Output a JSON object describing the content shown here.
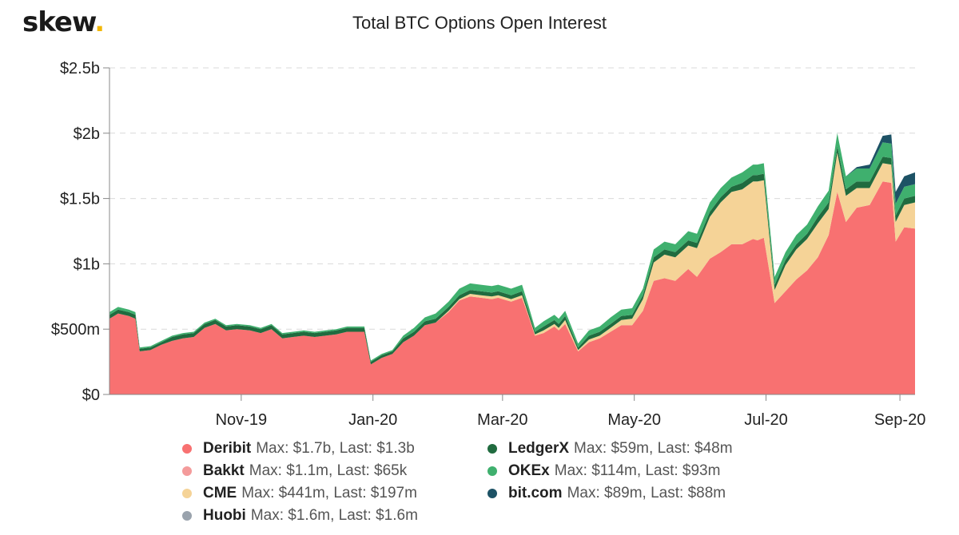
{
  "logo": {
    "text": "skew",
    "dot": "."
  },
  "chart_data": {
    "type": "area",
    "stacked": true,
    "title": "Total BTC Options Open Interest",
    "xlabel": "",
    "ylabel": "",
    "ylim": [
      0,
      2.5
    ],
    "y_unit": "billion USD",
    "yticks": [
      {
        "value": 0,
        "label": "$0"
      },
      {
        "value": 0.5,
        "label": "$500m"
      },
      {
        "value": 1,
        "label": "$1b"
      },
      {
        "value": 1.5,
        "label": "$1.5b"
      },
      {
        "value": 2,
        "label": "$2b"
      },
      {
        "value": 2.5,
        "label": "$2.5b"
      }
    ],
    "xticks": [
      {
        "value": "2019-11-01",
        "label": "Nov-19"
      },
      {
        "value": "2020-01-01",
        "label": "Jan-20"
      },
      {
        "value": "2020-03-01",
        "label": "Mar-20"
      },
      {
        "value": "2020-05-01",
        "label": "May-20"
      },
      {
        "value": "2020-07-01",
        "label": "Jul-20"
      },
      {
        "value": "2020-09-01",
        "label": "Sep-20"
      }
    ],
    "xlim": [
      "2019-09-01",
      "2020-09-08"
    ],
    "grid": "horizontal dashed",
    "x": [
      "2019-09-01",
      "2019-09-05",
      "2019-09-10",
      "2019-09-13",
      "2019-09-15",
      "2019-09-20",
      "2019-09-25",
      "2019-09-30",
      "2019-10-05",
      "2019-10-10",
      "2019-10-15",
      "2019-10-20",
      "2019-10-25",
      "2019-10-30",
      "2019-11-05",
      "2019-11-10",
      "2019-11-15",
      "2019-11-20",
      "2019-11-25",
      "2019-11-30",
      "2019-12-05",
      "2019-12-10",
      "2019-12-15",
      "2019-12-20",
      "2019-12-24",
      "2019-12-28",
      "2019-12-31",
      "2020-01-05",
      "2020-01-10",
      "2020-01-15",
      "2020-01-20",
      "2020-01-25",
      "2020-01-30",
      "2020-02-05",
      "2020-02-10",
      "2020-02-15",
      "2020-02-20",
      "2020-02-25",
      "2020-02-28",
      "2020-03-05",
      "2020-03-10",
      "2020-03-13",
      "2020-03-16",
      "2020-03-20",
      "2020-03-25",
      "2020-03-27",
      "2020-03-30",
      "2020-04-05",
      "2020-04-10",
      "2020-04-15",
      "2020-04-20",
      "2020-04-25",
      "2020-04-30",
      "2020-05-05",
      "2020-05-10",
      "2020-05-15",
      "2020-05-20",
      "2020-05-26",
      "2020-05-30",
      "2020-06-05",
      "2020-06-10",
      "2020-06-15",
      "2020-06-20",
      "2020-06-25",
      "2020-06-27",
      "2020-06-30",
      "2020-07-05",
      "2020-07-10",
      "2020-07-15",
      "2020-07-20",
      "2020-07-25",
      "2020-07-30",
      "2020-08-03",
      "2020-08-07",
      "2020-08-12",
      "2020-08-18",
      "2020-08-24",
      "2020-08-28",
      "2020-08-30",
      "2020-09-03",
      "2020-09-08"
    ],
    "series": [
      {
        "name": "Deribit",
        "color": "#f87171",
        "stats": "Max: $1.7b, Last: $1.3b",
        "values": [
          0.58,
          0.62,
          0.6,
          0.58,
          0.33,
          0.34,
          0.38,
          0.41,
          0.43,
          0.44,
          0.51,
          0.54,
          0.49,
          0.5,
          0.49,
          0.47,
          0.5,
          0.43,
          0.44,
          0.45,
          0.44,
          0.45,
          0.46,
          0.48,
          0.48,
          0.48,
          0.23,
          0.28,
          0.31,
          0.4,
          0.45,
          0.53,
          0.55,
          0.63,
          0.72,
          0.75,
          0.74,
          0.73,
          0.74,
          0.71,
          0.74,
          0.6,
          0.45,
          0.47,
          0.52,
          0.49,
          0.54,
          0.33,
          0.4,
          0.43,
          0.48,
          0.53,
          0.53,
          0.64,
          0.87,
          0.89,
          0.87,
          0.96,
          0.9,
          1.04,
          1.09,
          1.15,
          1.15,
          1.19,
          1.18,
          1.2,
          0.7,
          0.79,
          0.88,
          0.95,
          1.05,
          1.22,
          1.55,
          1.32,
          1.43,
          1.45,
          1.63,
          1.62,
          1.17,
          1.28,
          1.27
        ]
      },
      {
        "name": "Bakkt",
        "color": "#f49b9b",
        "stats": "Max: $1.1m, Last: $65k",
        "values": [
          0,
          0,
          0,
          0,
          0,
          0,
          0,
          0,
          0,
          0,
          0,
          0,
          0,
          0,
          0,
          0,
          0,
          0,
          0,
          0,
          0,
          0,
          0,
          0,
          0,
          0,
          0,
          0,
          0,
          0,
          0,
          0,
          0,
          0,
          0,
          0,
          0,
          0,
          0,
          0,
          0,
          0,
          0,
          0,
          0,
          0,
          0,
          0,
          0,
          0,
          0,
          0,
          0,
          0,
          0,
          0,
          0,
          0,
          0,
          0,
          0,
          0,
          0,
          0,
          0,
          0,
          0,
          0,
          0,
          0,
          0,
          0,
          0,
          0,
          0,
          0,
          0,
          0,
          0,
          0,
          0
        ]
      },
      {
        "name": "CME",
        "color": "#f5d397",
        "stats": "Max: $441m, Last: $197m",
        "values": [
          0,
          0,
          0,
          0,
          0,
          0,
          0,
          0,
          0,
          0,
          0,
          0,
          0,
          0,
          0,
          0,
          0,
          0,
          0,
          0,
          0,
          0,
          0,
          0,
          0,
          0,
          0,
          0,
          0,
          0,
          0,
          0,
          0,
          0.01,
          0.01,
          0.02,
          0.02,
          0.02,
          0.02,
          0.02,
          0.02,
          0.01,
          0.01,
          0.02,
          0.02,
          0.02,
          0.03,
          0.01,
          0.02,
          0.02,
          0.03,
          0.04,
          0.05,
          0.09,
          0.14,
          0.18,
          0.18,
          0.18,
          0.22,
          0.32,
          0.38,
          0.4,
          0.42,
          0.44,
          0.45,
          0.44,
          0.1,
          0.2,
          0.23,
          0.24,
          0.26,
          0.2,
          0.3,
          0.2,
          0.15,
          0.13,
          0.14,
          0.14,
          0.15,
          0.17,
          0.2
        ]
      },
      {
        "name": "Huobi",
        "color": "#9aa3ad",
        "stats": "Max: $1.6m, Last: $1.6m",
        "values": [
          0,
          0,
          0,
          0,
          0,
          0,
          0,
          0,
          0,
          0,
          0,
          0,
          0,
          0,
          0,
          0,
          0,
          0,
          0,
          0,
          0,
          0,
          0,
          0,
          0,
          0,
          0,
          0,
          0,
          0,
          0,
          0,
          0,
          0,
          0,
          0,
          0,
          0,
          0,
          0,
          0,
          0,
          0,
          0,
          0,
          0,
          0,
          0,
          0,
          0,
          0,
          0,
          0,
          0,
          0,
          0,
          0,
          0,
          0,
          0,
          0,
          0,
          0,
          0,
          0,
          0,
          0,
          0,
          0,
          0,
          0,
          0,
          0,
          0,
          0,
          0,
          0,
          0,
          0,
          0,
          0
        ]
      },
      {
        "name": "LedgerX",
        "color": "#206b3f",
        "stats": "Max: $59m, Last: $48m",
        "values": [
          0.03,
          0.03,
          0.03,
          0.03,
          0.02,
          0.02,
          0.02,
          0.03,
          0.03,
          0.03,
          0.03,
          0.03,
          0.03,
          0.03,
          0.03,
          0.03,
          0.03,
          0.03,
          0.03,
          0.03,
          0.03,
          0.03,
          0.03,
          0.03,
          0.03,
          0.03,
          0.02,
          0.02,
          0.02,
          0.03,
          0.03,
          0.03,
          0.03,
          0.03,
          0.03,
          0.03,
          0.03,
          0.03,
          0.03,
          0.03,
          0.03,
          0.03,
          0.02,
          0.03,
          0.03,
          0.03,
          0.03,
          0.02,
          0.03,
          0.03,
          0.03,
          0.03,
          0.03,
          0.03,
          0.04,
          0.04,
          0.04,
          0.04,
          0.04,
          0.04,
          0.04,
          0.04,
          0.05,
          0.05,
          0.05,
          0.05,
          0.04,
          0.04,
          0.04,
          0.04,
          0.05,
          0.05,
          0.05,
          0.05,
          0.05,
          0.05,
          0.05,
          0.05,
          0.05,
          0.05,
          0.05
        ]
      },
      {
        "name": "OKEx",
        "color": "#3fb06e",
        "stats": "Max: $114m, Last: $93m",
        "values": [
          0.02,
          0.02,
          0.02,
          0.02,
          0.01,
          0.01,
          0.01,
          0.01,
          0.01,
          0.01,
          0.01,
          0.01,
          0.01,
          0.01,
          0.01,
          0.01,
          0.01,
          0.01,
          0.01,
          0.01,
          0.01,
          0.01,
          0.01,
          0.01,
          0.01,
          0.01,
          0.01,
          0.01,
          0.01,
          0.02,
          0.03,
          0.03,
          0.04,
          0.04,
          0.05,
          0.05,
          0.05,
          0.05,
          0.05,
          0.05,
          0.05,
          0.04,
          0.03,
          0.04,
          0.04,
          0.04,
          0.04,
          0.03,
          0.04,
          0.04,
          0.05,
          0.05,
          0.05,
          0.05,
          0.06,
          0.06,
          0.06,
          0.07,
          0.07,
          0.07,
          0.07,
          0.07,
          0.08,
          0.08,
          0.08,
          0.08,
          0.06,
          0.06,
          0.07,
          0.07,
          0.08,
          0.09,
          0.1,
          0.1,
          0.1,
          0.1,
          0.11,
          0.11,
          0.09,
          0.09,
          0.09
        ]
      },
      {
        "name": "bit.com",
        "color": "#1d5265",
        "stats": "Max: $89m, Last: $88m",
        "values": [
          0,
          0,
          0,
          0,
          0,
          0,
          0,
          0,
          0,
          0,
          0,
          0,
          0,
          0,
          0,
          0,
          0,
          0,
          0,
          0,
          0,
          0,
          0,
          0,
          0,
          0,
          0,
          0,
          0,
          0,
          0,
          0,
          0,
          0,
          0,
          0,
          0,
          0,
          0,
          0,
          0,
          0,
          0,
          0,
          0,
          0,
          0,
          0,
          0,
          0,
          0,
          0,
          0,
          0,
          0,
          0,
          0,
          0,
          0,
          0,
          0,
          0,
          0,
          0,
          0,
          0,
          0,
          0,
          0,
          0,
          0,
          0,
          0,
          0,
          0.01,
          0.03,
          0.05,
          0.07,
          0.09,
          0.08,
          0.09
        ]
      }
    ]
  }
}
